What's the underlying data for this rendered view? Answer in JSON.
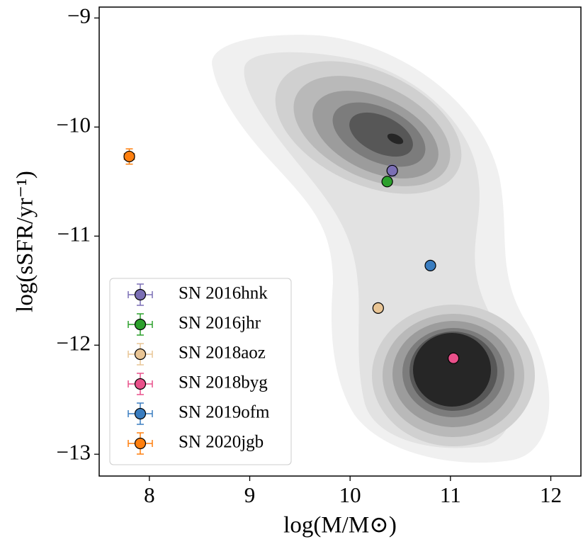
{
  "chart_data": {
    "type": "scatter",
    "x_label": "log(M/M⊙)",
    "y_label": "log(sSFR/yr⁻¹)",
    "xlim": [
      7.5,
      12.3
    ],
    "ylim": [
      -13.2,
      -8.9
    ],
    "xticks": [
      8,
      9,
      10,
      11,
      12
    ],
    "yticks": [
      {
        "value": -9,
        "label": "−9"
      },
      {
        "value": -10,
        "label": "−10"
      },
      {
        "value": -11,
        "label": "−11"
      },
      {
        "value": -12,
        "label": "−12"
      },
      {
        "value": -13,
        "label": "−13"
      }
    ],
    "legend": "lower left",
    "series": [
      {
        "name": "SN 2016hnk",
        "color": "#7b6fb5",
        "x": [
          10.42
        ],
        "values": [
          -10.4
        ],
        "xerr": [
          0.02
        ],
        "yerr": [
          0.05
        ]
      },
      {
        "name": "SN 2016jhr",
        "color": "#2ca02c",
        "x": [
          10.37
        ],
        "values": [
          -10.5
        ],
        "xerr": [
          0.02
        ],
        "yerr": [
          0.03
        ]
      },
      {
        "name": "SN 2018aoz",
        "color": "#e9c595",
        "x": [
          10.28
        ],
        "values": [
          -11.66
        ],
        "xerr": [
          0.02
        ],
        "yerr": [
          0.03
        ]
      },
      {
        "name": "SN 2018byg",
        "color": "#e9508a",
        "x": [
          11.03
        ],
        "values": [
          -12.12
        ],
        "xerr": [
          0.02
        ],
        "yerr": [
          0.03
        ]
      },
      {
        "name": "SN 2019ofm",
        "color": "#3a7dc0",
        "x": [
          10.8
        ],
        "values": [
          -11.27
        ],
        "xerr": [
          0.02
        ],
        "yerr": [
          0.03
        ]
      },
      {
        "name": "SN 2020jgb",
        "color": "#ff7f0e",
        "x": [
          7.8
        ],
        "values": [
          -10.27
        ],
        "xerr": [
          0.05
        ],
        "yerr": [
          0.07
        ]
      }
    ]
  }
}
